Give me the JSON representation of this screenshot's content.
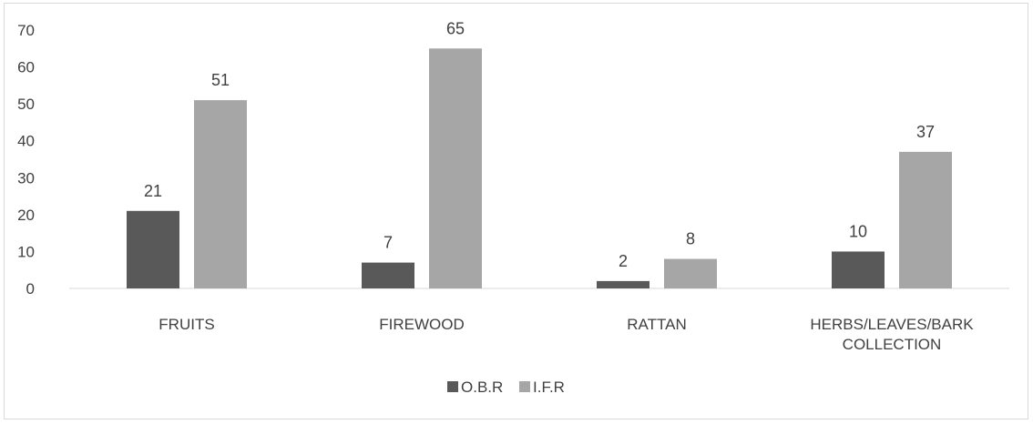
{
  "chart_data": {
    "type": "bar",
    "categories": [
      "FRUITS",
      "FIREWOOD",
      "RATTAN",
      "HERBS/LEAVES/BARK COLLECTION"
    ],
    "category_lines": [
      [
        "FRUITS"
      ],
      [
        "FIREWOOD"
      ],
      [
        "RATTAN"
      ],
      [
        "HERBS/LEAVES/BARK",
        "COLLECTION"
      ]
    ],
    "series": [
      {
        "name": "O.B.R",
        "values": [
          21,
          7,
          2,
          10
        ],
        "color": "#595959"
      },
      {
        "name": "I.F.R",
        "values": [
          51,
          65,
          8,
          37
        ],
        "color": "#a6a6a6"
      }
    ],
    "ylim": [
      0,
      70
    ],
    "yticks": [
      "0",
      "10",
      "20",
      "30",
      "40",
      "50",
      "60",
      "70"
    ],
    "grid": false,
    "legend_position": "bottom",
    "title": "",
    "xlabel": "",
    "ylabel": ""
  }
}
